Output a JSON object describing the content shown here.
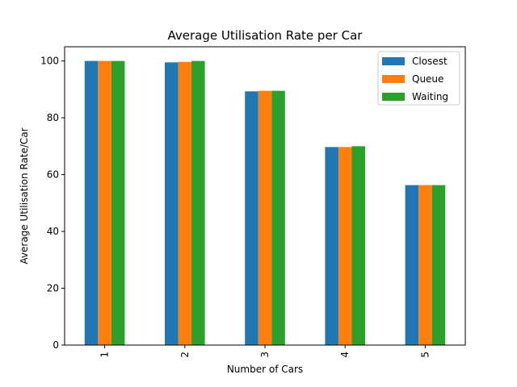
{
  "chart_data": {
    "type": "bar",
    "title": "Average Utilisation Rate per Car",
    "xlabel": "Number of Cars",
    "ylabel": "Average Utilisation Rate/Car",
    "categories": [
      "1",
      "2",
      "3",
      "4",
      "5"
    ],
    "series": [
      {
        "name": "Closest",
        "color": "#1f77b4",
        "values": [
          100.0,
          99.5,
          89.3,
          69.7,
          56.3
        ]
      },
      {
        "name": "Queue",
        "color": "#ff7f0e",
        "values": [
          100.0,
          99.7,
          89.5,
          69.7,
          56.3
        ]
      },
      {
        "name": "Waiting",
        "color": "#2ca02c",
        "values": [
          100.0,
          100.0,
          89.5,
          70.0,
          56.3
        ]
      }
    ],
    "ylim": [
      0,
      105
    ],
    "yticks": [
      0,
      20,
      40,
      60,
      80,
      100
    ],
    "legend_position": "top-right",
    "grid": false
  }
}
